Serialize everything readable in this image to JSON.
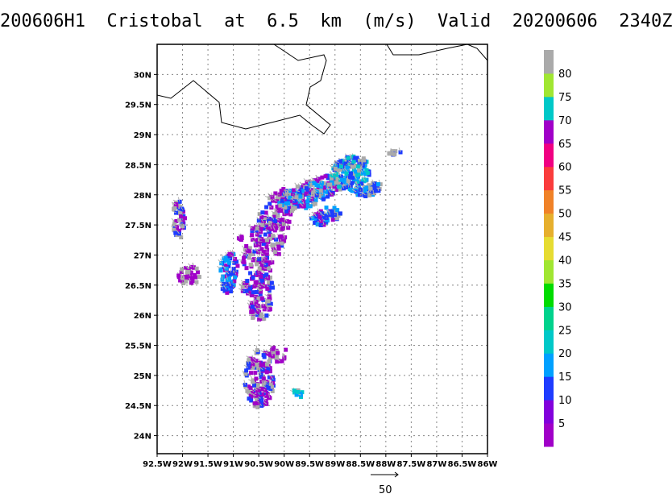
{
  "title": "200606H1  Cristobal  at  6.5  km  (m/s)  Valid  20200606  2340Z",
  "map": {
    "lon_range": [
      -92.5,
      -86.0
    ],
    "lat_range": [
      23.7,
      30.5
    ],
    "x_tick_labels": [
      "92.5W",
      "92W",
      "91.5W",
      "91W",
      "90.5W",
      "90W",
      "89.5W",
      "89W",
      "88.5W",
      "88W",
      "87.5W",
      "87W",
      "86.5W",
      "86W"
    ],
    "y_tick_labels": [
      "24N",
      "24.5N",
      "25N",
      "25.5N",
      "26N",
      "26.5N",
      "27N",
      "27.5N",
      "28N",
      "28.5N",
      "29N",
      "29.5N",
      "30N"
    ],
    "grid": true
  },
  "colorbar": {
    "labels": [
      "5",
      "10",
      "15",
      "20",
      "25",
      "30",
      "35",
      "40",
      "45",
      "50",
      "55",
      "60",
      "65",
      "70",
      "75",
      "80"
    ],
    "colors": [
      "#a000c8",
      "#8200dc",
      "#1e3cff",
      "#00a0ff",
      "#00c8c8",
      "#00d28c",
      "#00dc00",
      "#a0e632",
      "#e6dc32",
      "#e6af2d",
      "#f08228",
      "#fa3c3c",
      "#f00082",
      "#a000c8",
      "#00c8c8",
      "#a0e632",
      "#aaaaaa"
    ]
  },
  "reference_vector": {
    "label": "50"
  },
  "wind_colors": {
    "purple": "#a000c8",
    "blue": "#1e3cff",
    "lightblue": "#00a0ff",
    "cyan": "#00c8c8",
    "gray": "#aaaaaa"
  }
}
